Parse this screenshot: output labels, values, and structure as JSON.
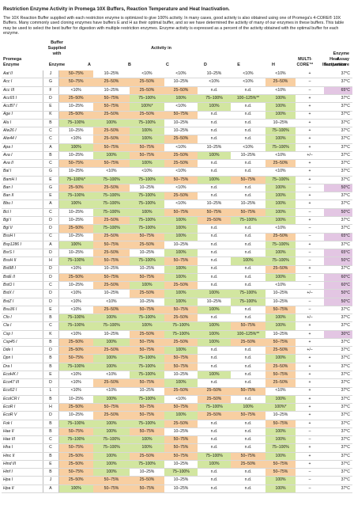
{
  "title": "Restriction Enzyme Activity in Promega 10X Buffers, Reaction Temperature and Heat Inactivation.",
  "intro": "The 10X Reaction Buffer supplied with each restriction enzyme is optimized to give 100% activity. In many cases, good activity is also obtained using one of Promega's 4-CORE® 10X Buffers. Many commonly used cloning enzymes have buffers E and H as their optimal buffer, and so we have determined the activity of many of our enzymes in these buffers. This table may be used to select the best buffer for digestion with multiple restriction enzymes. Enzyme activity is expressed as a percent of the activity obtained with the optimal buffer for each enzyme.",
  "headers": {
    "buffer_supplied": [
      "Buffer",
      "Supplied",
      "with"
    ],
    "promega": "Promega",
    "enzyme": "Enzyme",
    "activity_in": "Activity in",
    "a": "A",
    "b": "B",
    "c": "C",
    "d": "D",
    "e": "E",
    "h": "H",
    "multi": [
      "MULTI-",
      "CORE™"
    ],
    "heat": [
      "Heat",
      "Inactivation"
    ],
    "assay": [
      "Enzyme",
      "Assay",
      "Temperature"
    ]
  },
  "rows": [
    [
      "Aat II",
      "J",
      "50–75%",
      "10–25%",
      "<10%",
      "<10%",
      "10–25%",
      "<10%",
      "<10%",
      "+",
      "37°C"
    ],
    [
      "Acc I",
      "G",
      "50–75%",
      "25–50%",
      "25–50%",
      "10–25%",
      "<10%",
      "<10%",
      "25–50%",
      "–",
      "37°C"
    ],
    [
      "Acc III",
      "F",
      "<10%",
      "10–25%",
      "25–50%",
      "25–50%",
      "n.d.",
      "n.d.",
      "<10%",
      "–",
      "65°C"
    ],
    [
      "Acc65 I",
      "D",
      "25–50%",
      "50–75%",
      "75–100%",
      "100%",
      "75–100%",
      "100–125%**",
      "100%",
      "+",
      "37°C"
    ],
    [
      "AccB7 I",
      "E",
      "10–25%",
      "50–75%",
      "100%*",
      "<10%",
      "100%",
      "n.d.",
      "100%",
      "+",
      "37°C"
    ],
    [
      "Age I",
      "K",
      "25–50%",
      "25–50%",
      "25–50%",
      "50–75%",
      "n.d.",
      "n.d.",
      "100%",
      "+",
      "37°C"
    ],
    [
      "Alu I",
      "B",
      "75–100%",
      "100%",
      "75–100%",
      "10–25%",
      "n.d.",
      "n.d.",
      "10–25%",
      "+",
      "37°C"
    ],
    [
      "Alw26 I",
      "C",
      "10–25%",
      "25–50%",
      "100%",
      "10–25%",
      "n.d.",
      "n.d.",
      "75–100%",
      "+",
      "37°C"
    ],
    [
      "Alw44 I",
      "C",
      "<10%",
      "25–50%",
      "100%",
      "25–50%",
      "n.d.",
      "n.d.",
      "100%",
      "+",
      "37°C"
    ],
    [
      "Apa I",
      "A",
      "100%",
      "50–75%",
      "50–75%",
      "<10%",
      "10–25%",
      "<10%",
      "75–100%",
      "+",
      "37°C"
    ],
    [
      "Ava I",
      "B",
      "10–25%",
      "100%",
      "50–75%",
      "25–50%",
      "100%",
      "10–25%",
      "<10%",
      "+/–",
      "37°C"
    ],
    [
      "Ava II",
      "C",
      "50–75%",
      "50–75%",
      "100%",
      "25–50%",
      "n.d.",
      "n.d.",
      "25–50%",
      "+",
      "37°C"
    ],
    [
      "Bal I",
      "G",
      "10–25%",
      "<10%",
      "<10%",
      "<10%",
      "n.d.",
      "n.d.",
      "<10%",
      "+",
      "37°C"
    ],
    [
      "BamH I",
      "E",
      "75–100%*",
      "75–100%",
      "75–100%",
      "50–75%",
      "100%",
      "50–75%",
      "75–100%",
      "+",
      "37°C"
    ],
    [
      "Ban I",
      "G",
      "25–50%",
      "25–50%",
      "10–25%",
      "<10%",
      "n.d.",
      "n.d.",
      "100%",
      "–",
      "50°C"
    ],
    [
      "Ban II",
      "E",
      "75–100%",
      "75–100%",
      "75–100%",
      "25–50%",
      "n.d.",
      "n.d.",
      "100%",
      "+",
      "37°C"
    ],
    [
      "Bbu I",
      "A",
      "100%",
      "75–100%",
      "75–100%",
      "<10%",
      "10–25%",
      "10–25%",
      "100%",
      "+",
      "37°C"
    ],
    [
      "Bcl I",
      "C",
      "10–25%",
      "75–100%",
      "100%",
      "50–75%",
      "50–75%",
      "50–75%",
      "100%",
      "–",
      "50°C"
    ],
    [
      "Bgl I",
      "D",
      "10–25%",
      "25–50%",
      "75–100%",
      "100%",
      "25–50%",
      "75–100%",
      "100%",
      "+",
      "37°C"
    ],
    [
      "Bgl II",
      "D",
      "25–50%",
      "75–100%",
      "75–100%",
      "100%",
      "n.d.",
      "n.d.",
      "<10%",
      "–",
      "37°C"
    ],
    [
      "BssH I",
      "C",
      "10–25%",
      "25–50%",
      "50–75%",
      "100%",
      "n.d.",
      "n.d.",
      "25–50%",
      "–",
      "65°C"
    ],
    [
      "Bsp1286 I",
      "A",
      "100%",
      "50–75%",
      "25–50%",
      "10–25%",
      "n.d.",
      "n.d.",
      "75–100%",
      "+",
      "37°C"
    ],
    [
      "BsrS I",
      "D",
      "10–25%",
      "25–50%",
      "10–25%",
      "100%",
      "n.d.",
      "n.d.",
      "100%",
      "–",
      "65°C"
    ],
    [
      "BssH II",
      "H",
      "75–100%",
      "50–75%",
      "75–100%",
      "50–75%",
      "n.d.",
      "100%",
      "75–100%",
      "–",
      "50°C"
    ],
    [
      "Bst98 I",
      "D",
      "<10%",
      "10–25%",
      "10–25%",
      "100%",
      "n.d.",
      "n.d.",
      "25–50%",
      "+",
      "37°C"
    ],
    [
      "BstE II",
      "D",
      "25–50%",
      "50–75%",
      "50–75%",
      "100%",
      "n.d.",
      "n.d.",
      "100%",
      "–",
      "60°C"
    ],
    [
      "BstO I",
      "C",
      "10–25%",
      "25–50%",
      "100%",
      "25–50%",
      "n.d.",
      "n.d.",
      "<10%",
      "–",
      "60°C"
    ],
    [
      "BstX I",
      "D",
      "<10%",
      "10–25%",
      "25–50%",
      "100%",
      "100%",
      "75–100%",
      "10–25%",
      "+/–",
      "50°C"
    ],
    [
      "BstZ I",
      "D",
      "<10%",
      "<10%",
      "10–25%",
      "100%",
      "10–25%",
      "75–100%",
      "10–25%",
      "–",
      "50°C"
    ],
    [
      "Bsu36 I",
      "E",
      "<10%",
      "25–50%",
      "50–75%",
      "50–75%",
      "100%",
      "n.d.",
      "50–75%",
      "–",
      "37°C"
    ],
    [
      "Cfo I",
      "B",
      "75–100%",
      "100%",
      "75–100%",
      "25–50%",
      "n.d.",
      "n.d.",
      "100%",
      "+/–",
      "37°C"
    ],
    [
      "Cla I",
      "C",
      "75–100%",
      "75–100%",
      "100%",
      "75–100%",
      "100%",
      "50–75%",
      "100%",
      "+",
      "37°C"
    ],
    [
      "Csp I",
      "K",
      "<10%",
      "10–25%",
      "25–50%",
      "75–100%",
      "100%",
      "100–125%**",
      "10–25%",
      "+",
      "30°C"
    ],
    [
      "Csp45 I",
      "B",
      "25–50%",
      "100%",
      "50–75%",
      "25–50%",
      "100%",
      "25–50%",
      "50–75%",
      "+",
      "37°C"
    ],
    [
      "Dde I",
      "D",
      "25–50%",
      "25–50%",
      "50–75%",
      "100%",
      "n.d.",
      "n.d.",
      "25–50%",
      "+/–",
      "37°C"
    ],
    [
      "Dpn I",
      "B",
      "50–75%",
      "100%",
      "75–100%",
      "50–75%",
      "n.d.",
      "n.d.",
      "100%",
      "+",
      "37°C"
    ],
    [
      "Dra I",
      "B",
      "75–100%",
      "100%",
      "75–100%",
      "50–75%",
      "n.d.",
      "n.d.",
      "25–50%",
      "+",
      "37°C"
    ],
    [
      "EcoHK I",
      "E",
      "<10%",
      "<10%",
      "75–100%",
      "10–25%",
      "100%",
      "n.d.",
      "50–75%",
      "+",
      "37°C"
    ],
    [
      "Eco47 III",
      "D",
      "<10%",
      "25–50%",
      "50–75%",
      "100%",
      "n.d.",
      "n.d.",
      "25–50%",
      "+",
      "37°C"
    ],
    [
      "Eco52 I",
      "L",
      "<10%",
      "<10%",
      "10–25%",
      "25–50%",
      "25–50%",
      "50–75%",
      "<10%",
      "+",
      "37°C"
    ],
    [
      "EcoICR I",
      "B",
      "10–25%",
      "100%",
      "75–100%",
      "<10%",
      "25–50%",
      "n.d.",
      "100%",
      "+",
      "37°C"
    ],
    [
      "EcoR I",
      "H",
      "25–50%",
      "50–75%",
      "50–75%",
      "50–75%",
      "75–100%",
      "100%",
      "100%*",
      "+",
      "37°C"
    ],
    [
      "EcoR V",
      "D",
      "10–25%",
      "25–50%",
      "50–75%",
      "100%",
      "25–50%",
      "50–75%",
      "10–25%",
      "+",
      "37°C"
    ],
    [
      "Fok I",
      "B",
      "75–100%",
      "100%",
      "75–100%",
      "25–50%",
      "n.d.",
      "n.d.",
      "50–75%",
      "+",
      "37°C"
    ],
    [
      "Hae II",
      "B",
      "50–75%",
      "100%",
      "50–75%",
      "10–25%",
      "n.d.",
      "n.d.",
      "100%",
      "–",
      "37°C"
    ],
    [
      "Hae III",
      "C",
      "75–100%",
      "75–100%",
      "100%",
      "50–75%",
      "n.d.",
      "n.d.",
      "100%",
      "–",
      "37°C"
    ],
    [
      "Hha I",
      "C",
      "50–75%",
      "75–100%",
      "100%",
      "50–75%",
      "n.d.",
      "n.d.",
      "75–100%",
      "+",
      "37°C"
    ],
    [
      "Hinc II",
      "B",
      "25–50%",
      "100%",
      "25–50%",
      "50–75%",
      "75–100%",
      "50–75%",
      "100%",
      "+",
      "37°C"
    ],
    [
      "Hind III",
      "E",
      "25–50%",
      "100%",
      "75–100%",
      "10–25%",
      "100%",
      "25–50%",
      "50–75%",
      "+",
      "37°C"
    ],
    [
      "Hinf I",
      "B",
      "50–75%",
      "100%",
      "10–25%",
      "75–100%",
      "n.d.",
      "n.d.",
      "50–75%",
      "–",
      "37°C"
    ],
    [
      "Hpa I",
      "J",
      "25–50%",
      "50–75%",
      "25–50%",
      "10–25%",
      "n.d.",
      "n.d.",
      "100%",
      "–",
      "37°C"
    ],
    [
      "Hpa II",
      "A",
      "100%",
      "50–75%",
      "50–75%",
      "10–25%",
      "n.d.",
      "n.d.",
      "100%",
      "–",
      "37°C"
    ]
  ],
  "colors": {
    "green": "#d2e6a0",
    "orange": "#f8cfa2",
    "purple": "#e3c6e3"
  }
}
